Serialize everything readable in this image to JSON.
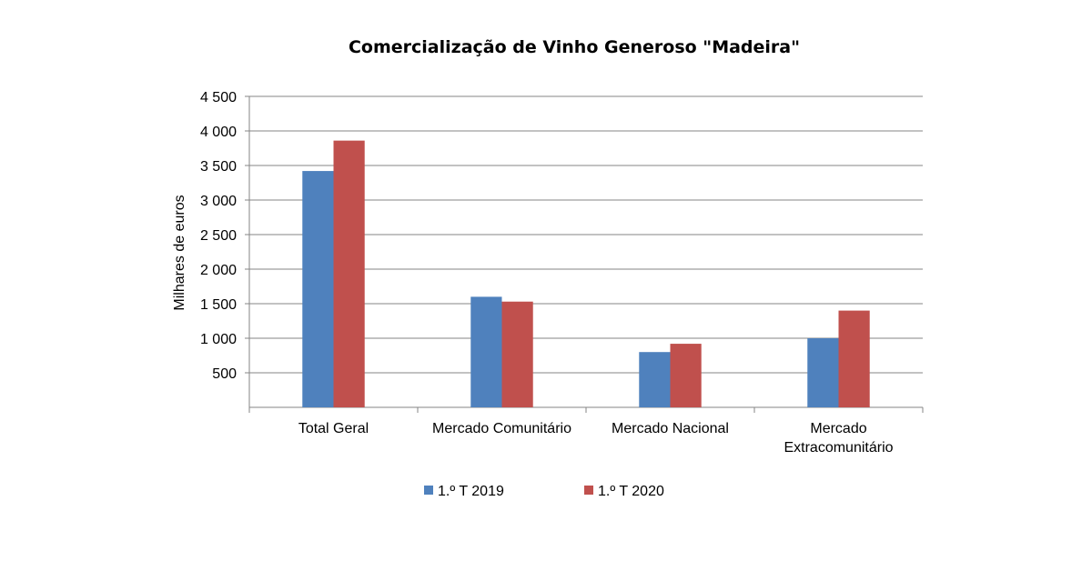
{
  "chart_data": {
    "type": "bar",
    "title": "Comercialização de Vinho Generoso \"Madeira\"",
    "xlabel": "",
    "ylabel": "Milhares de euros",
    "ylim": [
      0,
      4500
    ],
    "yticks": [
      500,
      1000,
      1500,
      2000,
      2500,
      3000,
      3500,
      4000,
      4500
    ],
    "ytick_labels": [
      "500",
      "1 000",
      "1 500",
      "2 000",
      "2 500",
      "3 000",
      "3 500",
      "4 000",
      "4 500"
    ],
    "categories": [
      [
        "Total Geral"
      ],
      [
        "Mercado Comunitário"
      ],
      [
        "Mercado Nacional"
      ],
      [
        "Mercado",
        "Extracomunitário"
      ]
    ],
    "series": [
      {
        "name": "1.º T 2019",
        "color": "#4F81BD",
        "values": [
          3420,
          1600,
          800,
          1000
        ]
      },
      {
        "name": "1.º T 2020",
        "color": "#C0504D",
        "values": [
          3860,
          1530,
          920,
          1400
        ]
      }
    ],
    "grid": true,
    "legend_position": "bottom"
  }
}
